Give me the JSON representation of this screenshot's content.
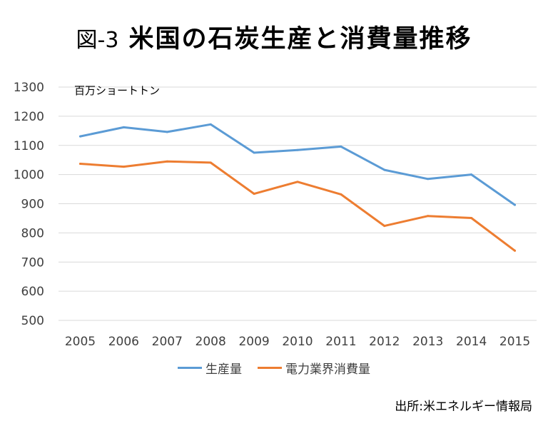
{
  "title": {
    "prefix": "図-3",
    "text": "米国の石炭生産と消費量推移"
  },
  "source": "出所:米エネルギー情報局",
  "colors": {
    "production": "#5b9bd5",
    "consumption": "#ed7d31",
    "grid": "#d9d9d9"
  },
  "chart_data": {
    "type": "line",
    "title": "図-3 米国の石炭生産と消費量推移",
    "ylabel": "百万ショートトン",
    "xlabel": "",
    "categories": [
      "2005",
      "2006",
      "2007",
      "2008",
      "2009",
      "2010",
      "2011",
      "2012",
      "2013",
      "2014",
      "2015"
    ],
    "ylim": [
      500,
      1300
    ],
    "yticks": [
      500,
      600,
      700,
      800,
      900,
      1000,
      1100,
      1200,
      1300
    ],
    "grid": true,
    "legend": "bottom",
    "series": [
      {
        "name": "生産量",
        "color": "#5b9bd5",
        "values": [
          1131,
          1162,
          1146,
          1172,
          1075,
          1084,
          1096,
          1016,
          985,
          1000,
          896
        ]
      },
      {
        "name": "電力業界消費量",
        "color": "#ed7d31",
        "values": [
          1037,
          1027,
          1045,
          1041,
          934,
          975,
          932,
          824,
          858,
          851,
          739
        ]
      }
    ]
  }
}
